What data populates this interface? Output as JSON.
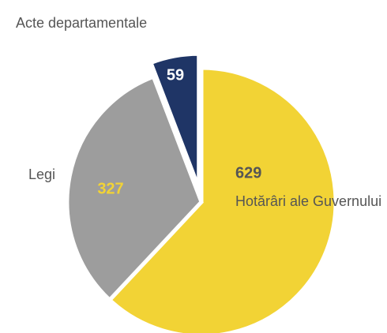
{
  "chart_data": {
    "type": "pie",
    "categories": [
      "Hotărâri ale Guvernului",
      "Legi",
      "Acte departamentale"
    ],
    "values": [
      629,
      327,
      59
    ],
    "colors": [
      "#f2d335",
      "#9d9d9d",
      "#1f3566"
    ]
  }
}
